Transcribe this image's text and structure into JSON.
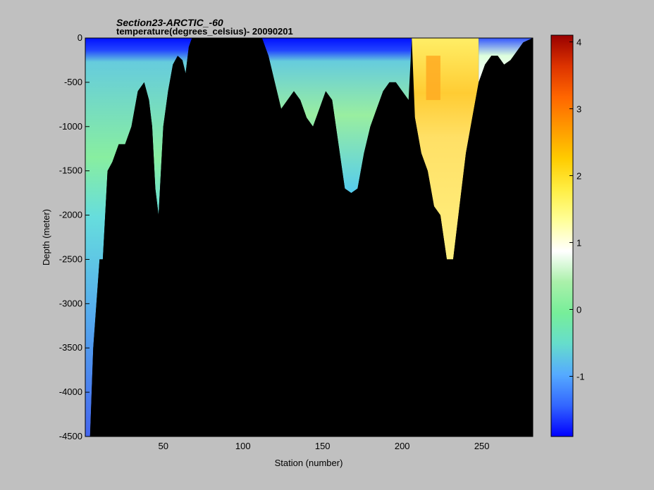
{
  "chart_data": {
    "type": "heatmap",
    "title": "Section23-ARCTIC_-60",
    "subtitle": "temperature(degrees_celsius)- 20090201",
    "xlabel": "Station (number)",
    "ylabel": "Depth (meter)",
    "xlim": [
      1,
      282
    ],
    "ylim": [
      -4500,
      0
    ],
    "xticks": [
      "50",
      "100",
      "150",
      "200",
      "250"
    ],
    "xtick_values": [
      50,
      100,
      150,
      200,
      250
    ],
    "yticks": [
      "0",
      "-500",
      "-1000",
      "-1500",
      "-2000",
      "-2500",
      "-3000",
      "-3500",
      "-4000",
      "-4500"
    ],
    "ytick_values": [
      0,
      -500,
      -1000,
      -1500,
      -2000,
      -2500,
      -3000,
      -3500,
      -4000,
      -4500
    ],
    "colorbar": {
      "min": -1.9,
      "max": 4.1,
      "ticks": [
        "-1",
        "0",
        "1",
        "2",
        "3",
        "4"
      ],
      "tick_values": [
        -1,
        0,
        1,
        2,
        3,
        4
      ],
      "colormap": [
        "#0000ff",
        "#3366ff",
        "#55aaff",
        "#66ddcc",
        "#77ee99",
        "#aaf0aa",
        "#ffffff",
        "#ffff99",
        "#ffee44",
        "#ffcc00",
        "#ff9900",
        "#ff6600",
        "#dd3300",
        "#990000"
      ]
    },
    "background_color": "#000000",
    "seafloor_depth_profile": {
      "stations": [
        1,
        4,
        6,
        8,
        10,
        12,
        15,
        18,
        22,
        26,
        30,
        34,
        38,
        41,
        43,
        45,
        47,
        50,
        53,
        56,
        59,
        62,
        64,
        66,
        68,
        112,
        116,
        120,
        124,
        128,
        132,
        136,
        140,
        144,
        148,
        152,
        156,
        160,
        164,
        168,
        172,
        176,
        180,
        184,
        188,
        192,
        196,
        200,
        204,
        208,
        212,
        216,
        220,
        224,
        228,
        232,
        236,
        240,
        244,
        248,
        252,
        256,
        260,
        264,
        268,
        272,
        276,
        282
      ],
      "bottom_depth": [
        -4500,
        -4500,
        -3500,
        -3000,
        -2500,
        -2500,
        -1500,
        -1400,
        -1200,
        -1200,
        -1000,
        -600,
        -500,
        -700,
        -1000,
        -1700,
        -2000,
        -1000,
        -600,
        -300,
        -200,
        -250,
        -400,
        -100,
        0,
        0,
        -200,
        -500,
        -800,
        -700,
        -600,
        -700,
        -900,
        -1000,
        -800,
        -600,
        -700,
        -1200,
        -1700,
        -1750,
        -1700,
        -1300,
        -1000,
        -800,
        -600,
        -500,
        -500,
        -600,
        -700,
        -900,
        -1300,
        -1500,
        -1900,
        -2000,
        -2500,
        -2500,
        -1900,
        -1300,
        -900,
        -500,
        -300,
        -200,
        -200,
        -300,
        -250,
        -150,
        -50,
        0
      ]
    },
    "water_temperature_layers": [
      {
        "region": "stations 1-68",
        "depth_range": [
          0,
          -150
        ],
        "temp": -1.8
      },
      {
        "region": "stations 1-68",
        "depth_range": [
          -150,
          -250
        ],
        "temp": -1.2
      },
      {
        "region": "stations 1-68",
        "depth_range": [
          -250,
          -1500
        ],
        "temp": -0.1
      },
      {
        "region": "stations 1-68",
        "depth_range": [
          -1500,
          -2500
        ],
        "temp": -0.5
      },
      {
        "region": "stations 1-68",
        "depth_range": [
          -2500,
          -4500
        ],
        "temp": -0.9
      },
      {
        "region": "stations 114-205",
        "depth_range": [
          0,
          -200
        ],
        "temp": -1.8
      },
      {
        "region": "stations 114-205",
        "depth_range": [
          -200,
          -1750
        ],
        "temp": -0.1
      },
      {
        "region": "stations 205-248",
        "depth_range": [
          0,
          -2500
        ],
        "temp": 2.1
      },
      {
        "region": "stations 215-225",
        "depth_range": [
          -200,
          -700
        ],
        "temp": 3.0
      },
      {
        "region": "stations 248-280",
        "depth_range": [
          0,
          -500
        ],
        "temp": 1.2
      }
    ]
  }
}
